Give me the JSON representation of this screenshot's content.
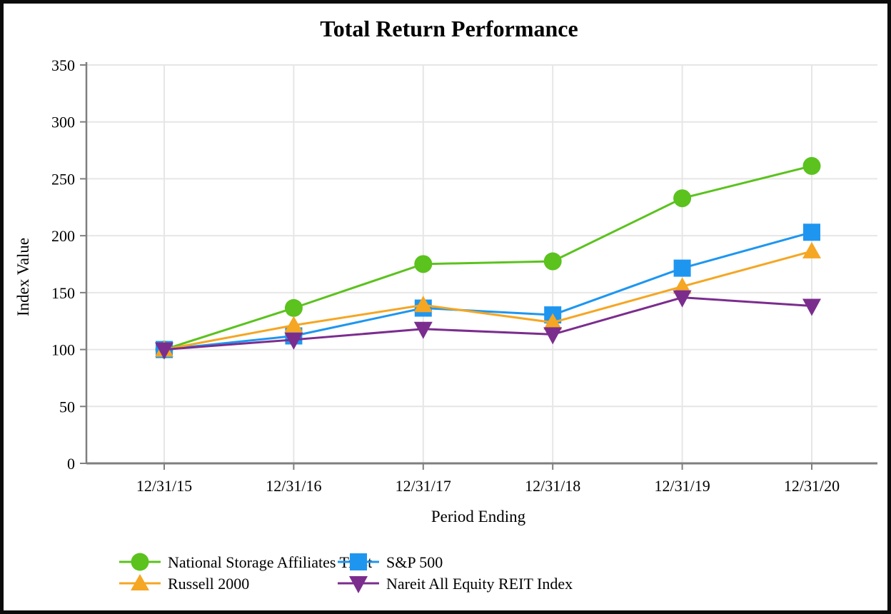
{
  "window": {
    "title": "Total Return Performance"
  },
  "chart_data": {
    "type": "line",
    "title": "Total Return Performance",
    "xlabel": "Period Ending",
    "ylabel": "Index Value",
    "x_categories": [
      "12/31/15",
      "12/31/16",
      "12/31/17",
      "12/31/18",
      "12/31/19",
      "12/31/20"
    ],
    "y_ticks": [
      0,
      50,
      100,
      150,
      200,
      250,
      300,
      350
    ],
    "ylim": [
      0,
      350
    ],
    "grid": true,
    "legend_position": "bottom",
    "colors": {
      "axis": "#7f7f7f",
      "gridline": "#e6e6e6",
      "text": "#000000"
    },
    "series": [
      {
        "name": "National Storage Affiliates Trust",
        "marker": "circle",
        "color": "#5bc21e",
        "values": [
          100,
          136.5,
          175.1,
          177.5,
          232.9,
          261.3
        ]
      },
      {
        "name": "S&P 500",
        "marker": "square",
        "color": "#1e96f0",
        "values": [
          100,
          111.96,
          136.4,
          130.42,
          171.49,
          203.04
        ]
      },
      {
        "name": "Russell 2000",
        "marker": "triangle-up",
        "color": "#f5a623",
        "values": [
          100,
          121.31,
          139.08,
          123.76,
          155.35,
          186.36
        ]
      },
      {
        "name": "Nareit All Equity REIT Index",
        "marker": "triangle-down",
        "color": "#7b2d8e",
        "values": [
          100,
          108.63,
          118.05,
          113.28,
          145.75,
          138.28
        ]
      }
    ],
    "legend_order_note": "legend grid row-major: series 0,1 in row 1 (cols 1,2); series 2,3 in row 2 (cols 1,2)"
  }
}
